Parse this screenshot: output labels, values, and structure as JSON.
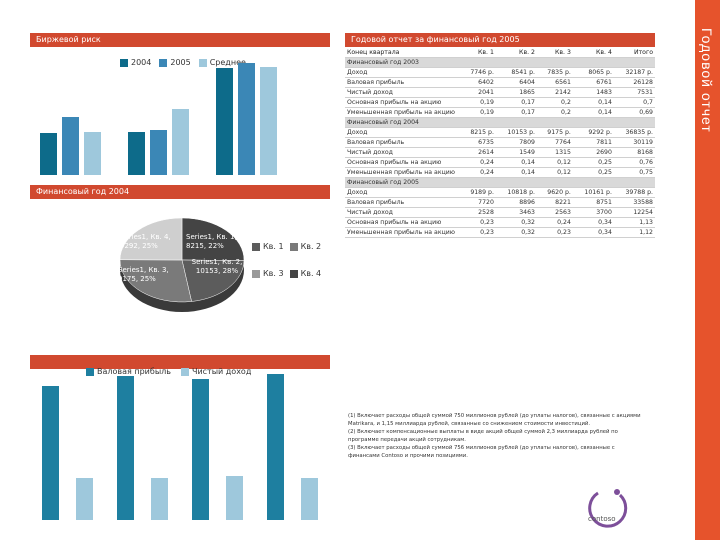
{
  "side_title": "Годовой отчет",
  "risk": {
    "title": "Биржевой риск",
    "legend": [
      "2004",
      "2005",
      "Среднее"
    ],
    "chart_data": {
      "type": "bar",
      "series": [
        {
          "name": "2004",
          "values": [
            0.32,
            0.33,
            0.82
          ]
        },
        {
          "name": "2005",
          "values": [
            0.45,
            0.35,
            0.86
          ]
        },
        {
          "name": "Среднее",
          "values": [
            0.33,
            0.51,
            0.83
          ]
        }
      ],
      "colors": [
        "#0d6b8a",
        "#3b87b6",
        "#9ec8dc"
      ]
    }
  },
  "pie": {
    "title": "Финансовый год 2004",
    "legend": [
      "Кв. 1",
      "Кв. 2",
      "Кв. 3",
      "Кв. 4"
    ],
    "labels": [
      "Series1, Кв. 4, 9292, 25%",
      "Series1, Кв. 1, 8215, 22%",
      "Series1, Кв. 2, 10153, 28%",
      "Series1, Кв. 3, 9175, 25%"
    ],
    "chart_data": {
      "type": "pie",
      "categories": [
        "Кв. 1",
        "Кв. 2",
        "Кв. 3",
        "Кв. 4"
      ],
      "values": [
        8215,
        10153,
        9175,
        9292
      ]
    }
  },
  "bottom": {
    "legend": [
      "Валовая прибыль",
      "Чистый доход"
    ],
    "chart_data": {
      "type": "bar",
      "series": [
        {
          "name": "Валовая прибыль",
          "values": [
            0.79,
            0.85,
            0.83,
            0.86
          ]
        },
        {
          "name": "Чистый доход",
          "values": [
            0.25,
            0.25,
            0.26,
            0.25
          ]
        }
      ]
    }
  },
  "report": {
    "title": "Годовой отчет за финансовый год 2005",
    "col_label": "Конец квартала",
    "cols": [
      "Кв. 1",
      "Кв. 2",
      "Кв. 3",
      "Кв. 4",
      "Итого"
    ],
    "sections": [
      {
        "name": "Финансовый год 2003",
        "rows": [
          {
            "label": "Доход",
            "v": [
              "7746 р.",
              "8541 р.",
              "7835 р.",
              "8065 р.",
              "32187 р."
            ]
          },
          {
            "label": "Валовая прибыль",
            "v": [
              "6402",
              "6404",
              "6561",
              "6761",
              "26128"
            ]
          },
          {
            "label": "Чистый доход",
            "v": [
              "2041",
              "1865",
              "2142",
              "1483",
              "7531"
            ]
          },
          {
            "label": "Основная прибыль на акцию",
            "v": [
              "0,19",
              "0,17",
              "0,2",
              "0,14",
              "0,7"
            ]
          },
          {
            "label": "Уменьшенная прибыль на акцию",
            "v": [
              "0,19",
              "0,17",
              "0,2",
              "0,14",
              "0,69"
            ]
          }
        ]
      },
      {
        "name": "Финансовый год 2004",
        "rows": [
          {
            "label": "Доход",
            "v": [
              "8215 р.",
              "10153 р.",
              "9175 р.",
              "9292 р.",
              "36835 р."
            ]
          },
          {
            "label": "Валовая прибыль",
            "v": [
              "6735",
              "7809",
              "7764",
              "7811",
              "30119"
            ]
          },
          {
            "label": "Чистый доход",
            "v": [
              "2614",
              "1549",
              "1315",
              "2690",
              "8168"
            ]
          },
          {
            "label": "Основная прибыль на акцию",
            "v": [
              "0,24",
              "0,14",
              "0,12",
              "0,25",
              "0,76"
            ]
          },
          {
            "label": "Уменьшенная прибыль на акцию",
            "v": [
              "0,24",
              "0,14",
              "0,12",
              "0,25",
              "0,75"
            ]
          }
        ]
      },
      {
        "name": "Финансовый год 2005",
        "rows": [
          {
            "label": "Доход",
            "v": [
              "9189 р.",
              "10818 р.",
              "9620 р.",
              "10161 р.",
              "39788 р."
            ]
          },
          {
            "label": "Валовая прибыль",
            "v": [
              "7720",
              "8896",
              "8221",
              "8751",
              "33588"
            ]
          },
          {
            "label": "Чистый доход",
            "v": [
              "2528",
              "3463",
              "2563",
              "3700",
              "12254"
            ]
          },
          {
            "label": "Основная прибыль на акцию",
            "v": [
              "0,23",
              "0,32",
              "0,24",
              "0,34",
              "1,13"
            ]
          },
          {
            "label": "Уменьшенная прибыль на акцию",
            "v": [
              "0,23",
              "0,32",
              "0,23",
              "0,34",
              "1,12"
            ]
          }
        ]
      }
    ],
    "notes": [
      "(1) Включает расходы общей суммой 750 миллионов рублей (до уплаты налогов), связанные с акциями Matrikara, и 1,15 миллиарда рублей, связанные со снижением стоимости инвестиций.",
      "(2) Включает компенсационные выплаты в виде акций общей суммой 2,3 миллиарда рублей по программе передачи акций сотрудникам.",
      "(3) Включает расходы общей суммой 756 миллионов рублей (до уплаты налогов), связанные с финансами Contoso и прочими позициями."
    ]
  },
  "logo": "contoso",
  "colors": {
    "accent": "#e6532c",
    "header": "#d1492f"
  }
}
